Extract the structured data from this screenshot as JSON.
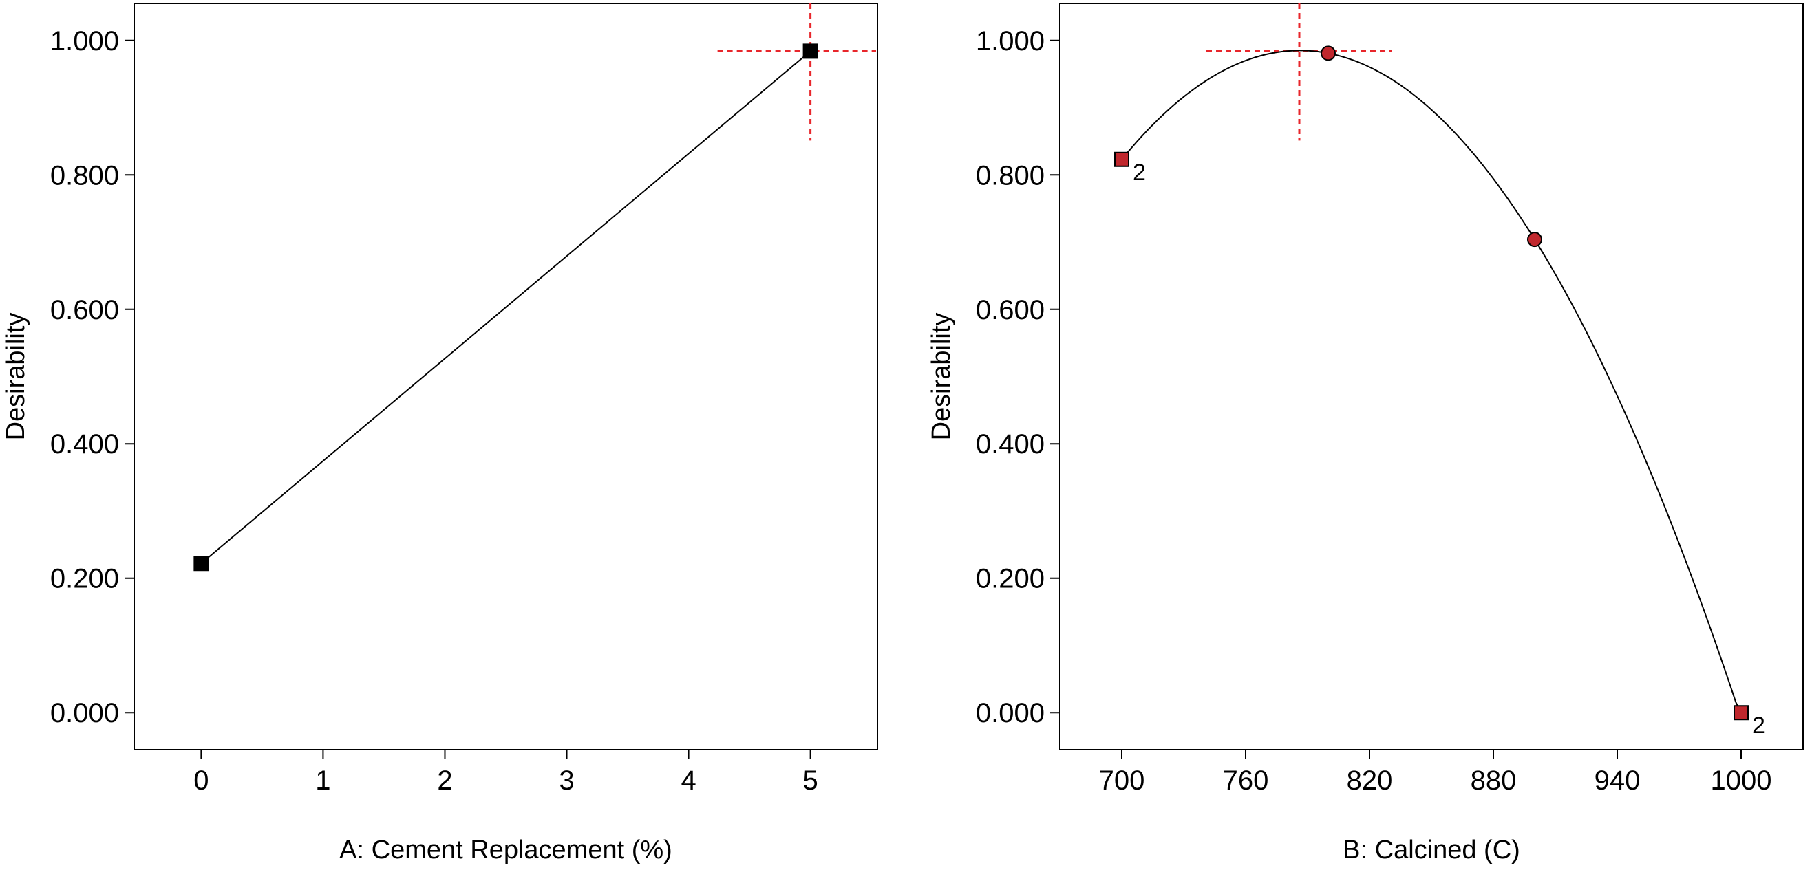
{
  "chart_data": [
    {
      "type": "line",
      "xlabel": "A: Cement Replacement (%)",
      "ylabel": "Desirability",
      "xlim": [
        -0.55,
        5.55
      ],
      "ylim": [
        -0.055,
        1.055
      ],
      "xticks": [
        0,
        1,
        2,
        3,
        4,
        5
      ],
      "xtick_labels": [
        "0",
        "1",
        "2",
        "3",
        "4",
        "5"
      ],
      "yticks": [
        0,
        0.2,
        0.4,
        0.6,
        0.8,
        1.0
      ],
      "ytick_labels": [
        "0.000",
        "0.200",
        "0.400",
        "0.600",
        "0.800",
        "1.000"
      ],
      "line": {
        "x": [
          0,
          5
        ],
        "y": [
          0.222,
          0.984
        ]
      },
      "points": [
        {
          "x": 0,
          "y": 0.222,
          "marker": "square",
          "color": "#000000",
          "label": ""
        },
        {
          "x": 5,
          "y": 0.984,
          "marker": "square",
          "color": "#000000",
          "label": ""
        }
      ],
      "crosshair": {
        "x": 5,
        "y": 0.984,
        "color": "#e8262b"
      },
      "grid": false
    },
    {
      "type": "line",
      "xlabel": "B: Calcined (C)",
      "ylabel": "Desirability",
      "xlim": [
        670,
        1030
      ],
      "ylim": [
        -0.055,
        1.055
      ],
      "xticks": [
        700,
        760,
        820,
        880,
        940,
        1000
      ],
      "xtick_labels": [
        "700",
        "760",
        "820",
        "880",
        "940",
        "1000"
      ],
      "yticks": [
        0,
        0.2,
        0.4,
        0.6,
        0.8,
        1.0
      ],
      "ytick_labels": [
        "0.000",
        "0.200",
        "0.400",
        "0.600",
        "0.800",
        "1.000"
      ],
      "curve": {
        "quadratic_through": [
          [
            700,
            0.823
          ],
          [
            800,
            0.981
          ],
          [
            900,
            0.704
          ]
        ],
        "x_range": [
          700,
          1000
        ]
      },
      "points": [
        {
          "x": 700,
          "y": 0.823,
          "marker": "square",
          "color": "#c0272d",
          "label": "2"
        },
        {
          "x": 800,
          "y": 0.981,
          "marker": "circle",
          "color": "#c0272d",
          "label": ""
        },
        {
          "x": 900,
          "y": 0.704,
          "marker": "circle",
          "color": "#c0272d",
          "label": ""
        },
        {
          "x": 1000,
          "y": 0.0,
          "marker": "square",
          "color": "#c0272d",
          "label": "2"
        }
      ],
      "crosshair": {
        "x": 786,
        "y": 0.984,
        "color": "#e8262b"
      },
      "grid": false
    }
  ]
}
